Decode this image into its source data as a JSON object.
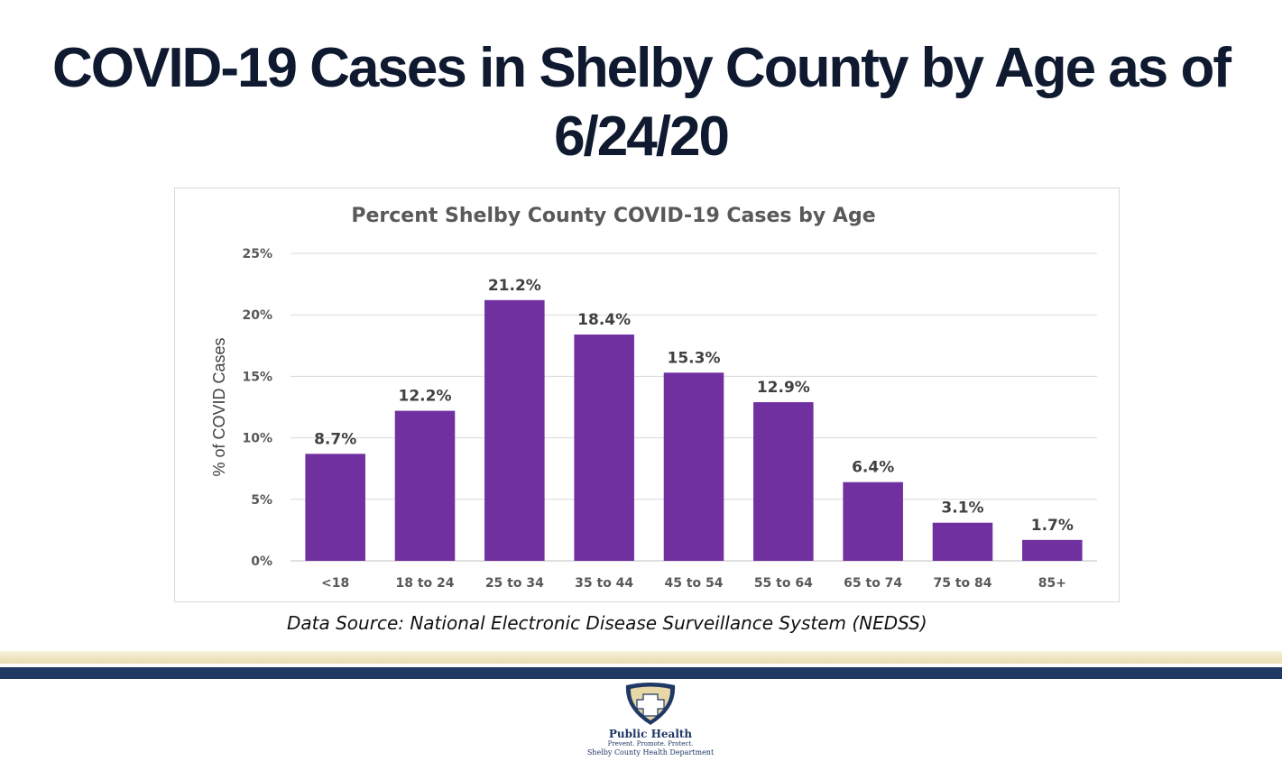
{
  "page_title": {
    "line1": "COVID-19 Cases in Shelby County by Age as of",
    "line2": "6/24/20"
  },
  "source_note": "Data Source: National Electronic Disease Surveillance System (NEDSS)",
  "logo": {
    "name": "Public Health",
    "tagline": "Prevent. Promote. Protect.",
    "department": "Shelby County Health Department"
  },
  "colors": {
    "bar": "#7030a0",
    "title": "#0f1a30",
    "navy": "#1f3864",
    "grid": "#d9d9d9"
  },
  "chart_data": {
    "type": "bar",
    "title": "Percent Shelby County COVID-19 Cases by Age",
    "xlabel": "",
    "ylabel": "% of COVID Cases",
    "categories": [
      "<18",
      "18 to 24",
      "25 to 34",
      "35 to 44",
      "45 to 54",
      "55 to 64",
      "65 to 74",
      "75 to 84",
      "85+"
    ],
    "values": [
      8.7,
      12.2,
      21.2,
      18.4,
      15.3,
      12.9,
      6.4,
      3.1,
      1.7
    ],
    "data_labels": [
      "8.7%",
      "12.2%",
      "21.2%",
      "18.4%",
      "15.3%",
      "12.9%",
      "6.4%",
      "3.1%",
      "1.7%"
    ],
    "ylim": [
      0,
      25
    ],
    "yticks": [
      0,
      5,
      10,
      15,
      20,
      25
    ],
    "ytick_labels": [
      "0%",
      "5%",
      "10%",
      "15%",
      "20%",
      "25%"
    ],
    "grid": true
  }
}
